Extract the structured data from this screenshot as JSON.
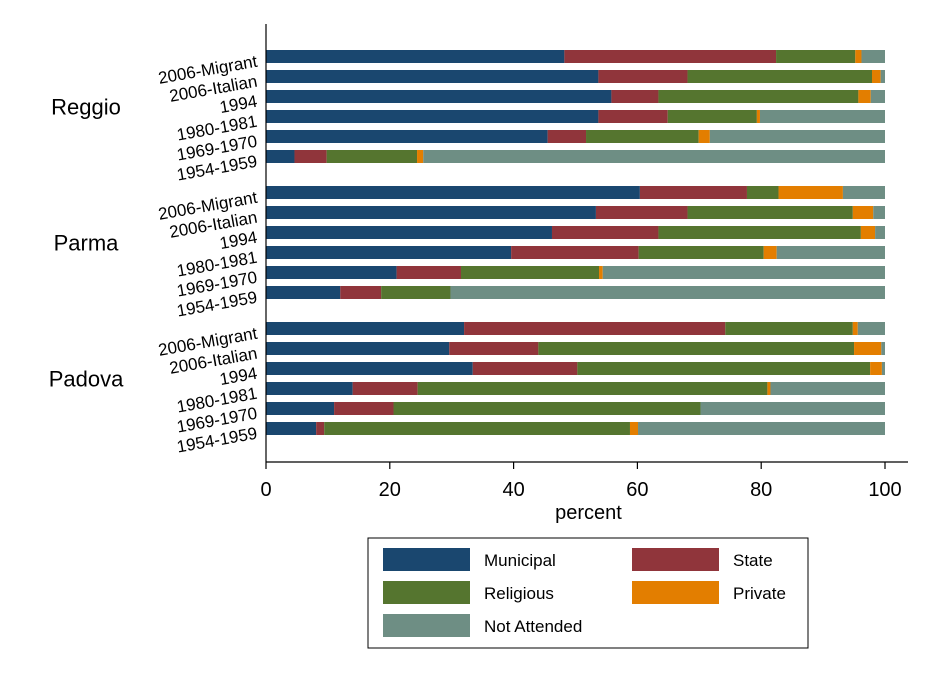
{
  "chart_data": {
    "type": "bar",
    "orientation": "horizontal",
    "stacked": true,
    "xlabel": "percent",
    "xlim": [
      0,
      100
    ],
    "xticks": [
      0,
      20,
      40,
      60,
      80,
      100
    ],
    "legend_placement": "bottom",
    "grid": false,
    "categories": [
      "2006-Migrant",
      "2006-Italian",
      "1994",
      "1980-1981",
      "1969-1970",
      "1954-1959"
    ],
    "series_names": [
      "Municipal",
      "State",
      "Religious",
      "Private",
      "Not Attended"
    ],
    "series_colors": [
      "#1a476f",
      "#90353b",
      "#55752f",
      "#e37e00",
      "#6e8e84"
    ],
    "groups": [
      {
        "name": "Reggio",
        "rows": [
          {
            "label": "2006-Migrant",
            "values": [
              48.2,
              34.2,
              12.8,
              1.0,
              3.8
            ]
          },
          {
            "label": "2006-Italian",
            "values": [
              53.7,
              14.4,
              29.8,
              1.4,
              0.7
            ]
          },
          {
            "label": "1994",
            "values": [
              55.8,
              7.6,
              32.3,
              2.0,
              2.3
            ]
          },
          {
            "label": "1980-1981",
            "values": [
              53.7,
              11.2,
              14.4,
              0.5,
              20.2
            ]
          },
          {
            "label": "1969-1970",
            "values": [
              45.5,
              6.2,
              18.2,
              1.8,
              28.3
            ]
          },
          {
            "label": "1954-1959",
            "values": [
              4.6,
              5.2,
              14.6,
              1.0,
              74.6
            ]
          }
        ]
      },
      {
        "name": "Parma",
        "rows": [
          {
            "label": "2006-Migrant",
            "values": [
              60.4,
              17.3,
              5.1,
              10.4,
              6.8
            ]
          },
          {
            "label": "2006-Italian",
            "values": [
              53.3,
              14.8,
              26.7,
              3.3,
              1.9
            ]
          },
          {
            "label": "1994",
            "values": [
              46.2,
              17.2,
              32.7,
              2.3,
              1.6
            ]
          },
          {
            "label": "1980-1981",
            "values": [
              39.6,
              20.6,
              20.2,
              2.1,
              17.5
            ]
          },
          {
            "label": "1969-1970",
            "values": [
              21.1,
              10.4,
              22.3,
              0.6,
              45.6
            ]
          },
          {
            "label": "1954-1959",
            "values": [
              12.0,
              6.6,
              11.2,
              0.0,
              70.2
            ]
          }
        ]
      },
      {
        "name": "Padova",
        "rows": [
          {
            "label": "2006-Migrant",
            "values": [
              32.0,
              42.2,
              20.6,
              0.8,
              4.4
            ]
          },
          {
            "label": "2006-Italian",
            "values": [
              29.6,
              14.4,
              51.0,
              4.4,
              0.6
            ]
          },
          {
            "label": "1994",
            "values": [
              33.4,
              16.9,
              47.3,
              1.9,
              0.5
            ]
          },
          {
            "label": "1980-1981",
            "values": [
              14.0,
              10.5,
              56.5,
              0.5,
              18.5
            ]
          },
          {
            "label": "1969-1970",
            "values": [
              11.0,
              9.6,
              49.6,
              0.0,
              29.8
            ]
          },
          {
            "label": "1954-1959",
            "values": [
              8.1,
              1.3,
              49.4,
              1.3,
              39.9
            ]
          }
        ]
      }
    ]
  }
}
